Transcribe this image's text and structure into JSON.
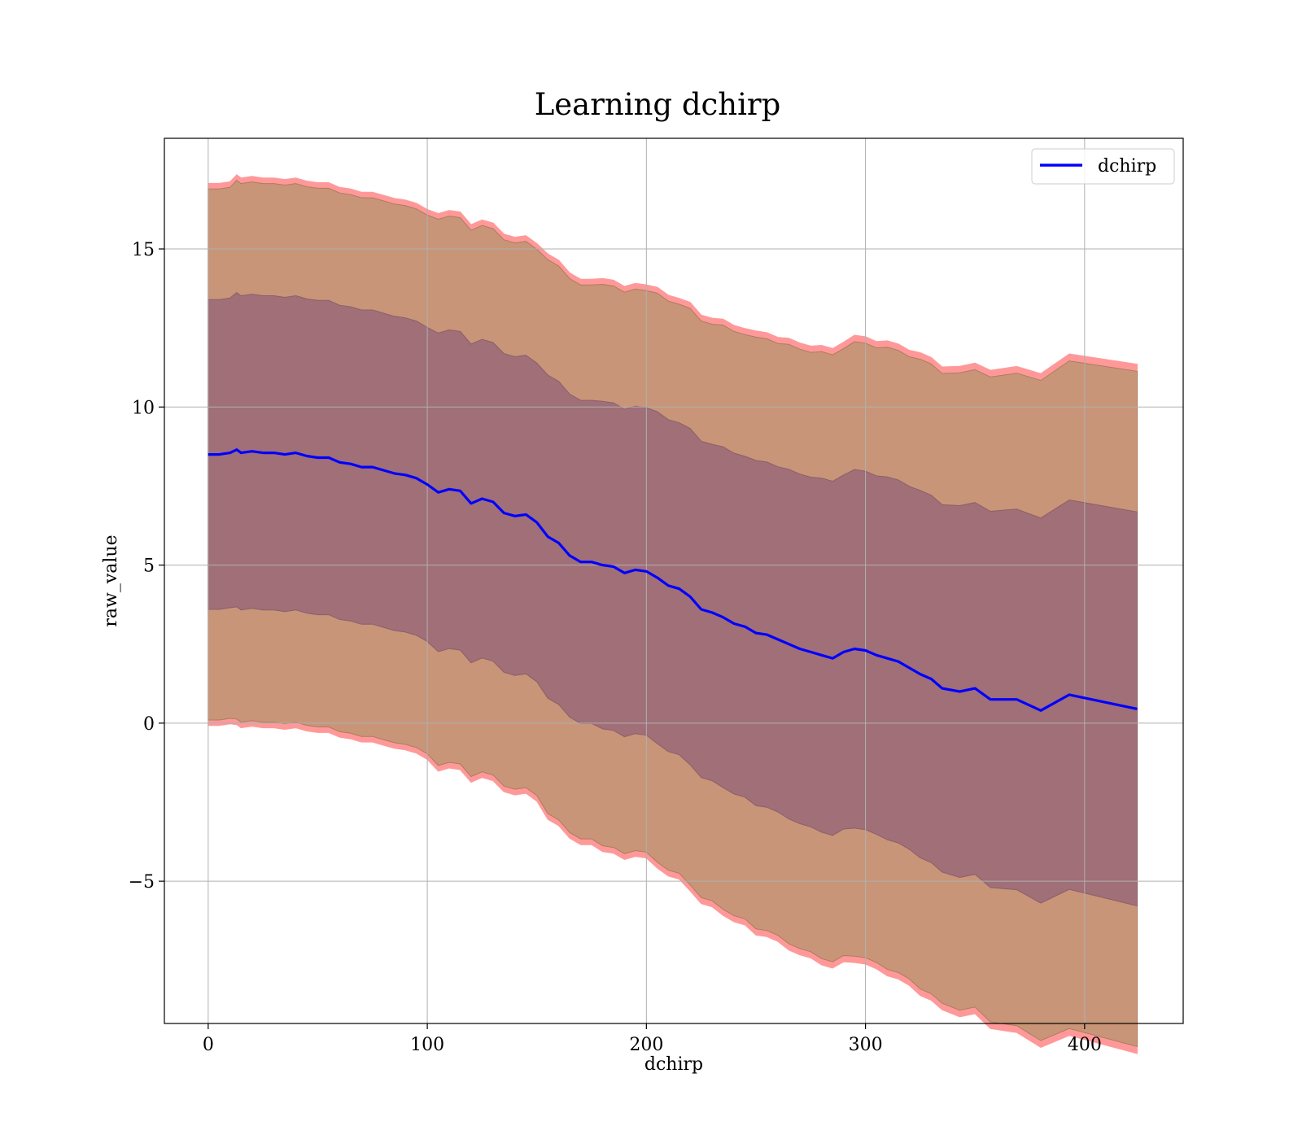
{
  "chart_data": {
    "type": "area",
    "title": "Learning dchirp",
    "xlabel": "dchirp",
    "ylabel": "raw_value",
    "xlim": [
      -20,
      445
    ],
    "ylim": [
      -9.5,
      18.5
    ],
    "xticks": [
      0,
      100,
      200,
      300,
      400
    ],
    "yticks": [
      15,
      10,
      5,
      0,
      -5
    ],
    "xtick_labels": [
      "0",
      "100",
      "200",
      "300",
      "400"
    ],
    "ytick_labels": [
      "15",
      "10",
      "5",
      "0",
      "−5"
    ],
    "grid": true,
    "legend": {
      "position": "top-right",
      "entries": [
        "dchirp"
      ]
    },
    "colors": {
      "mean_line": "#0000ff",
      "outer_band": "#ff9999",
      "middle_band": "#c89578",
      "inner_band": "#a06f78",
      "grid": "#b0b0b0"
    },
    "series": [
      {
        "name": "dchirp",
        "x": [
          0,
          5,
          10,
          13,
          15,
          20,
          25,
          30,
          35,
          40,
          45,
          50,
          55,
          60,
          65,
          70,
          75,
          80,
          85,
          90,
          95,
          100,
          105,
          110,
          115,
          120,
          125,
          130,
          135,
          140,
          145,
          150,
          155,
          160,
          165,
          170,
          175,
          180,
          185,
          190,
          195,
          200,
          205,
          210,
          215,
          220,
          225,
          230,
          235,
          240,
          245,
          250,
          255,
          260,
          265,
          270,
          275,
          280,
          285,
          290,
          295,
          300,
          305,
          310,
          315,
          320,
          325,
          330,
          335,
          343,
          350,
          357,
          369,
          380,
          393,
          424
        ],
        "mean": [
          8.5,
          8.5,
          8.55,
          8.65,
          8.55,
          8.6,
          8.55,
          8.55,
          8.5,
          8.55,
          8.45,
          8.4,
          8.4,
          8.25,
          8.2,
          8.1,
          8.1,
          8.0,
          7.9,
          7.85,
          7.75,
          7.55,
          7.3,
          7.4,
          7.35,
          6.95,
          7.1,
          7.0,
          6.65,
          6.55,
          6.6,
          6.35,
          5.9,
          5.7,
          5.3,
          5.1,
          5.1,
          5.0,
          4.95,
          4.75,
          4.85,
          4.8,
          4.6,
          4.35,
          4.25,
          4.0,
          3.6,
          3.5,
          3.35,
          3.15,
          3.05,
          2.85,
          2.8,
          2.65,
          2.5,
          2.35,
          2.25,
          2.15,
          2.05,
          2.25,
          2.35,
          2.3,
          2.15,
          2.05,
          1.95,
          1.75,
          1.55,
          1.4,
          1.1,
          1.0,
          1.1,
          0.75,
          0.75,
          0.4,
          0.9,
          0.45
        ],
        "std": [
          3.5,
          3.5,
          3.5,
          3.55,
          3.55,
          3.55,
          3.55,
          3.55,
          3.55,
          3.55,
          3.55,
          3.55,
          3.55,
          3.55,
          3.55,
          3.55,
          3.55,
          3.55,
          3.55,
          3.55,
          3.55,
          3.55,
          3.6,
          3.6,
          3.6,
          3.6,
          3.6,
          3.6,
          3.6,
          3.6,
          3.6,
          3.6,
          3.65,
          3.65,
          3.65,
          3.65,
          3.65,
          3.7,
          3.7,
          3.7,
          3.7,
          3.7,
          3.75,
          3.75,
          3.75,
          3.8,
          3.8,
          3.8,
          3.85,
          3.85,
          3.85,
          3.9,
          3.9,
          3.9,
          3.95,
          3.95,
          3.95,
          4.0,
          4.0,
          4.0,
          4.05,
          4.05,
          4.05,
          4.1,
          4.1,
          4.1,
          4.15,
          4.15,
          4.15,
          4.2,
          4.2,
          4.25,
          4.3,
          4.35,
          4.4,
          4.45
        ]
      }
    ]
  }
}
